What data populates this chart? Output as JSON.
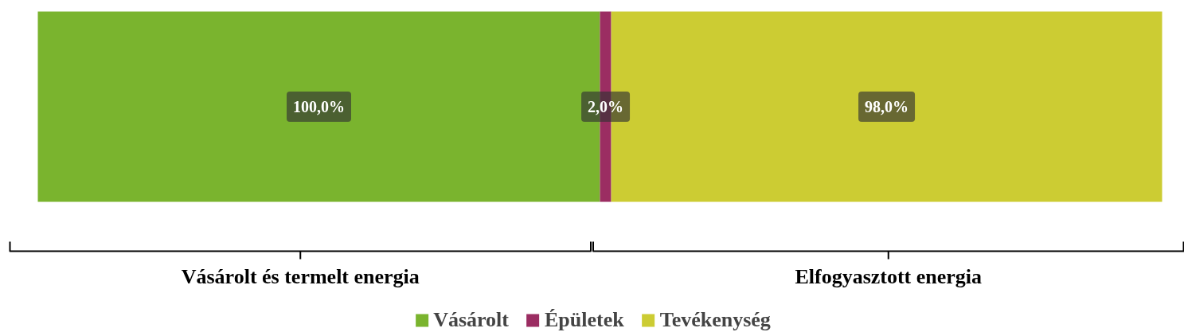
{
  "chart_data": {
    "type": "bar",
    "orientation": "horizontal",
    "stacked": true,
    "categories": [
      null
    ],
    "series": [
      {
        "name": "Vásárolt",
        "color": "#7ab42e",
        "values": [
          100.0
        ],
        "value_labels": [
          "100,0%"
        ]
      },
      {
        "name": "Épületek",
        "color": "#9b2d62",
        "values": [
          2.0
        ],
        "value_labels": [
          "2,0%"
        ]
      },
      {
        "name": "Tevékenység",
        "color": "#cccc33",
        "values": [
          98.0
        ],
        "value_labels": [
          "98,0%"
        ]
      }
    ],
    "annotations": [
      "Vásárolt és termelt energia",
      "Elfogyasztott energia"
    ],
    "legend": "bottom",
    "grid": false
  }
}
